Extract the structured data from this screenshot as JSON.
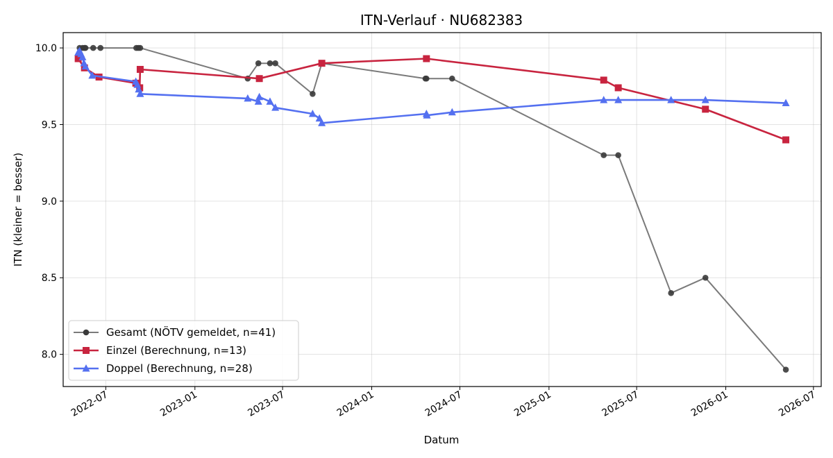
{
  "chart_data": {
    "type": "line",
    "title": "ITN-Verlauf · NU682383",
    "xlabel": "Datum",
    "ylabel": "ITN  (kleiner = besser)",
    "ylim": [
      7.79,
      10.1
    ],
    "xlim": [
      "2022-04-04",
      "2026-07-17"
    ],
    "y_ticks": [
      "8.0",
      "8.5",
      "9.0",
      "9.5",
      "10.0"
    ],
    "x_ticks": [
      "2022-07",
      "2023-01",
      "2023-07",
      "2024-01",
      "2024-07",
      "2025-01",
      "2025-07",
      "2026-01",
      "2026-07"
    ],
    "grid": true,
    "legend_position": "lower-left",
    "series": [
      {
        "name": "Gesamt (NÖTV gemeldet, n=41)",
        "color": "#555555",
        "marker": "circle",
        "points": [
          [
            "2022-05-08",
            10.0
          ],
          [
            "2022-05-14",
            10.0
          ],
          [
            "2022-05-18",
            10.0
          ],
          [
            "2022-05-20",
            10.0
          ],
          [
            "2022-06-05",
            10.0
          ],
          [
            "2022-06-20",
            10.0
          ],
          [
            "2022-09-02",
            10.0
          ],
          [
            "2022-09-06",
            10.0
          ],
          [
            "2022-09-10",
            10.0
          ],
          [
            "2023-04-20",
            9.8
          ],
          [
            "2023-05-12",
            9.9
          ],
          [
            "2023-06-05",
            9.9
          ],
          [
            "2023-06-16",
            9.9
          ],
          [
            "2023-09-01",
            9.7
          ],
          [
            "2023-09-20",
            9.9
          ],
          [
            "2024-04-21",
            9.8
          ],
          [
            "2024-04-23",
            9.8
          ],
          [
            "2024-06-15",
            9.8
          ],
          [
            "2025-04-24",
            9.3
          ],
          [
            "2025-05-24",
            9.3
          ],
          [
            "2025-09-10",
            8.4
          ],
          [
            "2025-11-20",
            8.5
          ],
          [
            "2026-05-05",
            7.9
          ]
        ]
      },
      {
        "name": "Einzel (Berechnung, n=13)",
        "color": "#c8243f",
        "marker": "square",
        "points": [
          [
            "2022-05-05",
            9.93
          ],
          [
            "2022-05-18",
            9.87
          ],
          [
            "2022-06-17",
            9.81
          ],
          [
            "2022-09-01",
            9.77
          ],
          [
            "2022-09-09",
            9.74
          ],
          [
            "2022-09-10",
            9.86
          ],
          [
            "2023-05-14",
            9.8
          ],
          [
            "2023-09-20",
            9.9
          ],
          [
            "2024-04-23",
            9.93
          ],
          [
            "2025-04-24",
            9.79
          ],
          [
            "2025-05-24",
            9.74
          ],
          [
            "2025-11-20",
            9.6
          ],
          [
            "2026-05-05",
            9.4
          ]
        ]
      },
      {
        "name": "Doppel (Berechnung, n=28)",
        "color": "#5470f0",
        "marker": "triangle",
        "points": [
          [
            "2022-05-05",
            9.97
          ],
          [
            "2022-05-08",
            9.98
          ],
          [
            "2022-05-11",
            9.96
          ],
          [
            "2022-05-14",
            9.94
          ],
          [
            "2022-05-17",
            9.9
          ],
          [
            "2022-05-20",
            9.88
          ],
          [
            "2022-06-03",
            9.82
          ],
          [
            "2022-09-01",
            9.78
          ],
          [
            "2022-09-04",
            9.76
          ],
          [
            "2022-09-07",
            9.73
          ],
          [
            "2022-09-10",
            9.7
          ],
          [
            "2023-04-20",
            9.67
          ],
          [
            "2023-05-12",
            9.65
          ],
          [
            "2023-05-14",
            9.68
          ],
          [
            "2023-06-05",
            9.65
          ],
          [
            "2023-06-16",
            9.61
          ],
          [
            "2023-09-01",
            9.57
          ],
          [
            "2023-09-15",
            9.54
          ],
          [
            "2023-09-20",
            9.51
          ],
          [
            "2024-04-23",
            9.57
          ],
          [
            "2024-04-24",
            9.56
          ],
          [
            "2024-06-15",
            9.58
          ],
          [
            "2025-04-24",
            9.66
          ],
          [
            "2025-05-24",
            9.66
          ],
          [
            "2025-09-10",
            9.66
          ],
          [
            "2025-11-20",
            9.66
          ],
          [
            "2026-05-05",
            9.64
          ]
        ]
      }
    ]
  }
}
